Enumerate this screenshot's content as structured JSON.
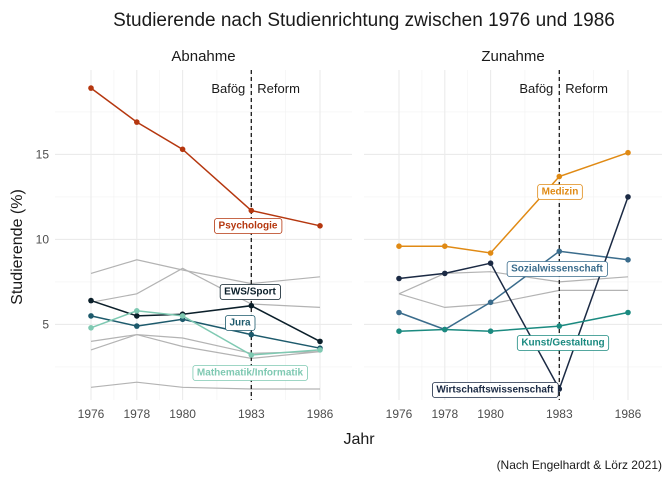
{
  "title": "Studierende nach Studienrichtung zwischen 1976 und 1986",
  "caption": "(Nach Engelhardt & Lörz 2021)",
  "chart_data": {
    "type": "line",
    "xlabel": "Jahr",
    "ylabel": "Studierende (%)",
    "x": [
      1976,
      1978,
      1980,
      1983,
      1986
    ],
    "x_ticks": [
      "1976",
      "1978",
      "1980",
      "1983",
      "1986"
    ],
    "y_ticks": [
      5,
      10,
      15
    ],
    "ylim": [
      0.6,
      20
    ],
    "grid": true,
    "reference_line": {
      "x": 1983,
      "style": "dashed",
      "left_label": "Bafög",
      "right_label": "Reform"
    },
    "panels": [
      {
        "name": "Abnahme",
        "background_series": [
          [
            8.0,
            8.8,
            8.2,
            7.4,
            7.8
          ],
          [
            6.3,
            6.8,
            8.3,
            6.2,
            6.0
          ],
          [
            4.0,
            4.4,
            4.2,
            3.3,
            3.4
          ],
          [
            3.5,
            4.4,
            3.7,
            3.0,
            3.4
          ],
          [
            1.3,
            1.6,
            1.3,
            1.2,
            1.2
          ]
        ],
        "series": [
          {
            "name": "Psychologie",
            "color": "#b5370f",
            "values": [
              18.9,
              16.9,
              15.3,
              11.7,
              10.8
            ]
          },
          {
            "name": "EWS/Sport",
            "color": "#0b1f2a",
            "values": [
              6.4,
              5.5,
              5.6,
              6.1,
              4.0
            ]
          },
          {
            "name": "Jura",
            "color": "#1d5a6c",
            "values": [
              5.5,
              4.9,
              5.3,
              4.4,
              3.6
            ]
          },
          {
            "name": "Mathematik/Informatik",
            "color": "#7fc9b2",
            "values": [
              4.8,
              5.8,
              5.5,
              3.2,
              3.5
            ]
          }
        ]
      },
      {
        "name": "Zunahme",
        "background_series": [
          [
            6.8,
            8.0,
            8.1,
            7.5,
            7.8
          ],
          [
            6.8,
            6.0,
            6.2,
            7.0,
            7.0
          ]
        ],
        "series": [
          {
            "name": "Medizin",
            "color": "#e08a14",
            "values": [
              9.6,
              9.6,
              9.2,
              13.7,
              15.1
            ]
          },
          {
            "name": "Sozialwissenschaft",
            "color": "#3a6c8c",
            "values": [
              5.7,
              4.7,
              6.3,
              9.3,
              8.8
            ]
          },
          {
            "name": "Wirtschaftswissenschaft",
            "color": "#1b2a44",
            "values": [
              7.7,
              8.0,
              8.6,
              1.2,
              12.5
            ]
          },
          {
            "name": "Kunst/Gestaltung",
            "color": "#1b8a80",
            "values": [
              4.6,
              4.7,
              4.6,
              4.9,
              5.7
            ]
          }
        ]
      }
    ]
  }
}
